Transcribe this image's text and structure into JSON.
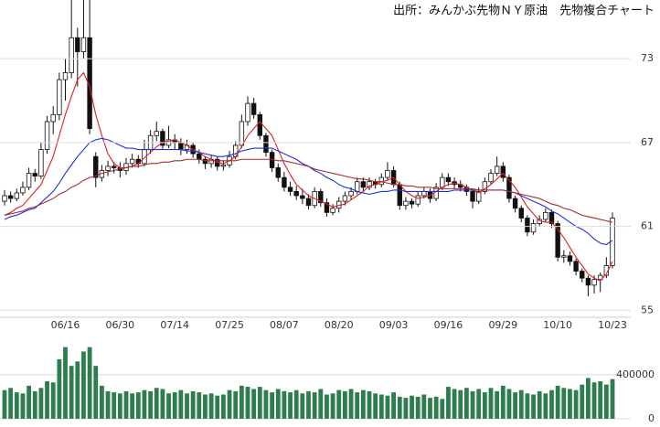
{
  "chart_data": [
    {
      "type": "candlestick",
      "title": "出所：みんかぶ先物ＮＹ原油　先物複合チャート",
      "categories": [
        null,
        null,
        null,
        null,
        null,
        null,
        null,
        null,
        null,
        null,
        "06/16",
        null,
        null,
        null,
        null,
        null,
        null,
        null,
        null,
        "06/30",
        null,
        null,
        null,
        null,
        null,
        null,
        null,
        null,
        "07/14",
        null,
        null,
        null,
        null,
        null,
        null,
        null,
        null,
        "07/25",
        null,
        null,
        null,
        null,
        null,
        null,
        null,
        null,
        "08/07",
        null,
        null,
        null,
        null,
        null,
        null,
        null,
        null,
        "08/20",
        null,
        null,
        null,
        null,
        null,
        null,
        null,
        null,
        "09/03",
        null,
        null,
        null,
        null,
        null,
        null,
        null,
        null,
        "09/16",
        null,
        null,
        null,
        null,
        null,
        null,
        null,
        null,
        "09/29",
        null,
        null,
        null,
        null,
        null,
        null,
        null,
        null,
        "10/10",
        null,
        null,
        null,
        null,
        null,
        null,
        null,
        null,
        "10/23"
      ],
      "open": [
        62.8,
        63.2,
        63.0,
        63.4,
        63.8,
        64.8,
        64.6,
        66.5,
        68.5,
        69.0,
        71.5,
        72.0,
        74.5,
        73.5,
        74.5,
        66.0,
        64.5,
        65.0,
        65.3,
        65.2,
        65.0,
        65.5,
        65.8,
        65.5,
        66.5,
        67.5,
        67.8,
        66.8,
        67.2,
        67.0,
        66.5,
        66.8,
        66.2,
        65.8,
        65.5,
        65.8,
        65.3,
        65.4,
        66.0,
        66.8,
        68.5,
        69.8,
        69.0,
        67.5,
        66.3,
        65.2,
        64.5,
        63.8,
        63.5,
        63.2,
        63.0,
        62.5,
        63.5,
        62.7,
        62.0,
        62.3,
        62.8,
        63.2,
        63.5,
        64.2,
        63.8,
        64.2,
        64.0,
        64.5,
        65.0,
        64.0,
        62.5,
        62.8,
        62.6,
        63.2,
        63.5,
        63.0,
        63.8,
        64.5,
        64.2,
        64.0,
        63.8,
        63.5,
        62.8,
        63.5,
        64.2,
        64.8,
        65.3,
        64.5,
        63.0,
        62.3,
        61.6,
        60.6,
        61.2,
        61.5,
        62.0,
        61.2,
        58.8,
        58.9,
        58.5,
        57.8,
        57.3,
        56.8,
        57.2,
        57.5,
        58.2
      ],
      "high": [
        63.6,
        63.5,
        63.7,
        64.2,
        65.2,
        65.1,
        67.0,
        68.9,
        69.6,
        72.0,
        73.0,
        77.5,
        75.2,
        77.5,
        78.0,
        66.3,
        65.4,
        65.7,
        65.6,
        65.6,
        65.9,
        66.2,
        66.1,
        67.2,
        67.9,
        68.5,
        68.0,
        68.2,
        67.6,
        67.3,
        67.2,
        67.0,
        66.5,
        66.0,
        66.1,
        66.0,
        65.7,
        66.4,
        67.1,
        69.0,
        70.3,
        70.2,
        69.2,
        67.7,
        66.5,
        65.5,
        64.9,
        64.2,
        63.9,
        63.7,
        63.3,
        63.8,
        63.7,
        63.0,
        62.6,
        63.1,
        63.5,
        63.8,
        64.5,
        64.5,
        64.5,
        64.4,
        64.8,
        65.6,
        65.3,
        64.2,
        63.1,
        63.0,
        63.5,
        63.8,
        63.7,
        64.1,
        64.8,
        64.8,
        64.5,
        64.3,
        64.0,
        63.7,
        63.8,
        64.5,
        65.1,
        66.0,
        65.6,
        64.7,
        63.2,
        62.5,
        61.8,
        61.5,
        61.8,
        62.3,
        62.2,
        61.4,
        59.3,
        59.2,
        58.7,
        58.0,
        57.5,
        57.5,
        57.7,
        58.8,
        62.0
      ],
      "low": [
        62.5,
        62.7,
        62.8,
        63.2,
        63.6,
        64.2,
        64.4,
        66.2,
        67.6,
        68.6,
        70.0,
        71.6,
        71.0,
        73.0,
        67.6,
        63.8,
        64.2,
        64.6,
        64.8,
        64.5,
        64.7,
        65.2,
        65.2,
        65.3,
        66.2,
        67.1,
        66.5,
        66.6,
        66.5,
        66.1,
        66.2,
        65.9,
        65.5,
        65.1,
        65.2,
        65.0,
        65.0,
        65.2,
        65.8,
        66.6,
        68.2,
        68.7,
        67.2,
        66.0,
        64.9,
        64.2,
        63.5,
        63.2,
        62.9,
        62.6,
        62.2,
        62.3,
        62.4,
        61.7,
        61.8,
        62.0,
        62.5,
        62.9,
        63.3,
        63.5,
        63.6,
        63.7,
        63.8,
        64.3,
        63.8,
        62.2,
        62.2,
        62.3,
        62.4,
        63.0,
        62.7,
        62.8,
        63.6,
        63.9,
        63.7,
        63.5,
        63.2,
        62.3,
        62.6,
        63.3,
        64.0,
        64.6,
        64.2,
        62.7,
        62.0,
        61.3,
        60.3,
        60.4,
        61.0,
        61.3,
        60.9,
        58.5,
        58.4,
        58.2,
        57.5,
        57.0,
        56.0,
        56.2,
        56.3,
        57.3,
        58.0
      ],
      "close": [
        63.2,
        63.0,
        63.4,
        63.8,
        64.8,
        64.6,
        66.5,
        68.5,
        69.0,
        71.5,
        72.0,
        74.5,
        73.5,
        74.5,
        68.0,
        64.5,
        65.0,
        65.3,
        65.2,
        65.0,
        65.5,
        65.8,
        65.5,
        66.5,
        67.5,
        67.8,
        66.8,
        67.2,
        67.0,
        66.5,
        66.8,
        66.2,
        65.8,
        65.5,
        65.8,
        65.3,
        65.4,
        66.0,
        66.8,
        68.5,
        69.8,
        69.0,
        67.5,
        66.3,
        65.2,
        64.5,
        63.8,
        63.5,
        63.2,
        63.0,
        62.5,
        63.5,
        62.7,
        62.0,
        62.3,
        62.8,
        63.2,
        63.5,
        64.2,
        63.8,
        64.2,
        64.0,
        64.5,
        65.0,
        64.0,
        62.5,
        62.8,
        62.6,
        63.2,
        63.5,
        63.0,
        63.8,
        64.5,
        64.2,
        64.0,
        63.8,
        63.5,
        62.8,
        63.5,
        64.2,
        64.8,
        65.3,
        64.5,
        63.0,
        62.3,
        61.6,
        60.6,
        61.2,
        61.5,
        62.0,
        61.2,
        58.8,
        58.9,
        58.5,
        57.8,
        57.3,
        56.8,
        57.2,
        57.5,
        58.2,
        61.6
      ],
      "series": [
        {
          "color": "#e02020",
          "values": [
            61.8,
            62.0,
            62.3,
            62.5,
            63.0,
            63.5,
            64.0,
            65.0,
            66.0,
            67.5,
            69.0,
            70.3,
            71.5,
            72.0,
            71.0,
            69.0,
            67.5,
            66.2,
            65.5,
            65.2,
            65.2,
            65.3,
            65.5,
            65.9,
            66.3,
            66.7,
            67.0,
            67.1,
            67.2,
            67.0,
            66.8,
            66.5,
            66.3,
            66.0,
            65.8,
            65.6,
            65.5,
            65.7,
            66.0,
            66.7,
            67.5,
            68.0,
            68.5,
            68.0,
            67.5,
            66.5,
            65.5,
            64.7,
            64.0,
            63.6,
            63.2,
            63.0,
            62.8,
            62.6,
            62.4,
            62.5,
            62.6,
            62.9,
            63.2,
            63.5,
            63.9,
            64.0,
            64.2,
            64.3,
            64.5,
            64.0,
            63.5,
            63.2,
            63.0,
            63.1,
            63.2,
            63.5,
            63.8,
            64.0,
            64.1,
            64.0,
            63.8,
            63.6,
            63.4,
            63.7,
            64.0,
            64.4,
            64.8,
            64.3,
            63.8,
            63.1,
            62.4,
            61.9,
            61.4,
            61.3,
            61.3,
            60.8,
            60.2,
            59.5,
            58.8,
            58.2,
            57.6,
            57.3,
            57.1,
            57.6,
            58.5
          ]
        },
        {
          "color": "#2030e0",
          "values": [
            61.5,
            61.7,
            61.8,
            62.0,
            62.2,
            62.3,
            62.7,
            63.1,
            63.5,
            64.1,
            64.8,
            65.4,
            66.0,
            66.5,
            67.0,
            67.2,
            67.3,
            67.2,
            67.0,
            66.8,
            66.6,
            66.6,
            66.5,
            66.5,
            66.5,
            66.5,
            66.5,
            66.5,
            66.5,
            66.5,
            66.4,
            66.4,
            66.3,
            66.2,
            66.1,
            66.0,
            66.0,
            66.1,
            66.2,
            66.4,
            66.5,
            66.6,
            66.6,
            66.6,
            66.6,
            66.4,
            66.2,
            66.0,
            65.8,
            65.5,
            65.3,
            65.0,
            64.8,
            64.5,
            64.3,
            64.0,
            63.8,
            63.7,
            63.5,
            63.4,
            63.3,
            63.4,
            63.5,
            63.5,
            63.6,
            63.6,
            63.5,
            63.5,
            63.5,
            63.5,
            63.5,
            63.5,
            63.5,
            63.5,
            63.6,
            63.6,
            63.6,
            63.6,
            63.6,
            63.6,
            63.6,
            63.6,
            63.6,
            63.5,
            63.4,
            63.2,
            63.0,
            62.8,
            62.6,
            62.4,
            62.1,
            61.9,
            61.6,
            61.3,
            61.0,
            60.8,
            60.5,
            60.1,
            59.8,
            59.7,
            60.0
          ]
        },
        {
          "color": "#a03030",
          "values": [
            61.8,
            61.9,
            62.0,
            62.1,
            62.3,
            62.4,
            62.6,
            62.8,
            63.0,
            63.3,
            63.5,
            63.8,
            64.0,
            64.3,
            64.5,
            64.6,
            64.8,
            64.9,
            65.0,
            65.1,
            65.2,
            65.3,
            65.3,
            65.4,
            65.5,
            65.5,
            65.6,
            65.6,
            65.7,
            65.7,
            65.8,
            65.8,
            65.8,
            65.7,
            65.7,
            65.7,
            65.7,
            65.7,
            65.7,
            65.8,
            65.8,
            65.8,
            65.8,
            65.8,
            65.8,
            65.7,
            65.7,
            65.6,
            65.5,
            65.4,
            65.3,
            65.1,
            65.0,
            64.9,
            64.8,
            64.7,
            64.6,
            64.5,
            64.4,
            64.4,
            64.3,
            64.2,
            64.2,
            64.1,
            64.0,
            64.0,
            63.9,
            63.9,
            63.8,
            63.8,
            63.8,
            63.7,
            63.7,
            63.7,
            63.7,
            63.7,
            63.7,
            63.7,
            63.6,
            63.6,
            63.6,
            63.6,
            63.6,
            63.5,
            63.4,
            63.3,
            63.2,
            63.1,
            63.0,
            62.8,
            62.6,
            62.5,
            62.3,
            62.2,
            62.0,
            61.8,
            61.7,
            61.6,
            61.5,
            61.4,
            61.3
          ]
        }
      ],
      "ylim": [
        54.5,
        77.2
      ],
      "yticks": [
        55,
        61,
        67,
        73
      ],
      "grid": true
    },
    {
      "type": "bar",
      "color": "#2e7d4f",
      "values": [
        260000,
        280000,
        240000,
        230000,
        300000,
        250000,
        280000,
        340000,
        330000,
        540000,
        650000,
        480000,
        520000,
        610000,
        650000,
        480000,
        300000,
        250000,
        240000,
        230000,
        250000,
        230000,
        240000,
        260000,
        250000,
        280000,
        270000,
        230000,
        240000,
        260000,
        230000,
        250000,
        240000,
        220000,
        230000,
        210000,
        220000,
        260000,
        250000,
        300000,
        290000,
        270000,
        290000,
        260000,
        240000,
        270000,
        250000,
        240000,
        260000,
        230000,
        250000,
        240000,
        270000,
        220000,
        230000,
        260000,
        250000,
        270000,
        240000,
        260000,
        250000,
        230000,
        220000,
        210000,
        240000,
        200000,
        190000,
        210000,
        200000,
        220000,
        190000,
        200000,
        180000,
        290000,
        270000,
        260000,
        280000,
        250000,
        270000,
        240000,
        280000,
        250000,
        300000,
        270000,
        240000,
        260000,
        230000,
        220000,
        250000,
        230000,
        260000,
        300000,
        280000,
        270000,
        260000,
        310000,
        370000,
        330000,
        340000,
        310000,
        360000
      ],
      "ylim": [
        0,
        730000
      ],
      "yticks": [
        0,
        400000
      ],
      "grid": true
    }
  ]
}
